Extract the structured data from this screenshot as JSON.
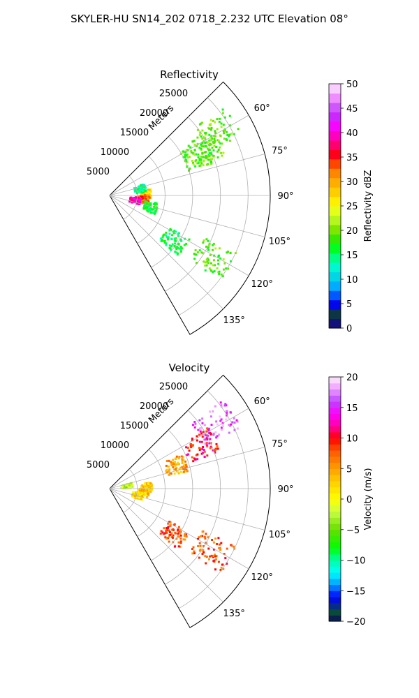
{
  "figure_title": "SKYLER-HU  SN14_202  0718_2.232 UTC Elevation 08°",
  "chart_data": [
    {
      "type": "heatmap",
      "projection": "polar-sector",
      "title": "Reflectivity",
      "angular_range_deg": [
        45,
        150
      ],
      "angular_ticks_deg": [
        60,
        75,
        90,
        105,
        120,
        135
      ],
      "angular_tick_labels": [
        "60°",
        "75°",
        "90°",
        "105°",
        "120°",
        "135°"
      ],
      "radial_label": "Meters",
      "radial_max": 29000,
      "radial_ticks": [
        5000,
        10000,
        15000,
        20000,
        25000
      ],
      "radial_tick_labels": [
        "5000",
        "10000",
        "15000",
        "20000",
        "25000"
      ],
      "grid": true,
      "colorbar": {
        "label": "Reflectivity dBZ",
        "range": [
          0,
          50
        ],
        "ticks": [
          0,
          5,
          10,
          15,
          20,
          25,
          30,
          35,
          40,
          45,
          50
        ],
        "tick_labels": [
          "0",
          "5",
          "10",
          "15",
          "20",
          "25",
          "30",
          "35",
          "40",
          "45",
          "50"
        ]
      },
      "echoes": [
        {
          "angle_deg": 58,
          "range_m": 22500,
          "value": 19
        },
        {
          "angle_deg": 65,
          "range_m": 17500,
          "value": 19
        },
        {
          "angle_deg": 63,
          "range_m": 19000,
          "value": 19
        },
        {
          "angle_deg": 86,
          "range_m": 6500,
          "value": 27
        },
        {
          "angle_deg": 95,
          "range_m": 6000,
          "value": 33
        },
        {
          "angle_deg": 99,
          "range_m": 4500,
          "value": 40
        },
        {
          "angle_deg": 76,
          "range_m": 5500,
          "value": 14
        },
        {
          "angle_deg": 105,
          "range_m": 7500,
          "value": 17
        },
        {
          "angle_deg": 125,
          "range_m": 14000,
          "value": 16
        },
        {
          "angle_deg": 121,
          "range_m": 21500,
          "value": 19
        }
      ]
    },
    {
      "type": "heatmap",
      "projection": "polar-sector",
      "title": "Velocity",
      "angular_range_deg": [
        45,
        150
      ],
      "angular_ticks_deg": [
        60,
        75,
        90,
        105,
        120,
        135
      ],
      "angular_tick_labels": [
        "60°",
        "75°",
        "90°",
        "105°",
        "120°",
        "135°"
      ],
      "radial_label": "Meters",
      "radial_max": 29000,
      "radial_ticks": [
        5000,
        10000,
        15000,
        20000,
        25000
      ],
      "radial_tick_labels": [
        "5000",
        "10000",
        "15000",
        "20000",
        "25000"
      ],
      "grid": true,
      "colorbar": {
        "label": "Velocity (m/s)",
        "range": [
          -20,
          20
        ],
        "ticks": [
          -20,
          -15,
          -10,
          -5,
          0,
          5,
          10,
          15,
          20
        ],
        "tick_labels": [
          "−20",
          "−15",
          "−10",
          "−5",
          "0",
          "5",
          "10",
          "15",
          "20"
        ]
      },
      "echoes": [
        {
          "angle_deg": 58,
          "range_m": 22500,
          "value": 16
        },
        {
          "angle_deg": 64,
          "range_m": 18000,
          "value": 10
        },
        {
          "angle_deg": 70,
          "range_m": 12500,
          "value": 5
        },
        {
          "angle_deg": 86,
          "range_m": 6500,
          "value": 3
        },
        {
          "angle_deg": 95,
          "range_m": 6000,
          "value": 3
        },
        {
          "angle_deg": 102,
          "range_m": 5000,
          "value": 2
        },
        {
          "angle_deg": 78,
          "range_m": 3000,
          "value": -3
        },
        {
          "angle_deg": 125,
          "range_m": 14000,
          "value": 8
        },
        {
          "angle_deg": 121,
          "range_m": 21500,
          "value": 8
        }
      ]
    }
  ]
}
